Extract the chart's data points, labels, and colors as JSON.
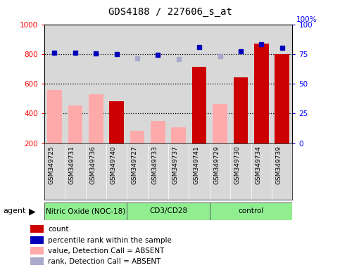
{
  "title": "GDS4188 / 227606_s_at",
  "samples": [
    "GSM349725",
    "GSM349731",
    "GSM349736",
    "GSM349740",
    "GSM349727",
    "GSM349733",
    "GSM349737",
    "GSM349741",
    "GSM349729",
    "GSM349730",
    "GSM349734",
    "GSM349739"
  ],
  "bar_values": [
    null,
    null,
    null,
    480,
    null,
    null,
    null,
    715,
    null,
    645,
    870,
    800
  ],
  "bar_color": "#cc0000",
  "pink_values": [
    558,
    455,
    530,
    null,
    285,
    350,
    305,
    null,
    462,
    null,
    null,
    null
  ],
  "pink_color": "#ffaaaa",
  "blue_squares": [
    810,
    808,
    806,
    797,
    null,
    796,
    null,
    845,
    null,
    820,
    863,
    843
  ],
  "blue_color": "#0000bb",
  "lavender_squares": [
    null,
    null,
    null,
    null,
    770,
    null,
    768,
    null,
    784,
    null,
    null,
    null
  ],
  "lavender_color": "#aaaacc",
  "ylim_left": [
    200,
    1000
  ],
  "ylim_right": [
    0,
    100
  ],
  "yticks_left": [
    200,
    400,
    600,
    800,
    1000
  ],
  "yticks_right": [
    0,
    25,
    50,
    75,
    100
  ],
  "hlines": [
    400,
    600,
    800
  ],
  "bar_width": 0.7,
  "group_defs": [
    {
      "name": "Nitric Oxide (NOC-18)",
      "start": 0,
      "end": 3
    },
    {
      "name": "CD3/CD28",
      "start": 4,
      "end": 7
    },
    {
      "name": "control",
      "start": 8,
      "end": 11
    }
  ],
  "group_color": "#90EE90",
  "legend_items": [
    {
      "label": "count",
      "color": "#cc0000"
    },
    {
      "label": "percentile rank within the sample",
      "color": "#0000bb"
    },
    {
      "label": "value, Detection Call = ABSENT",
      "color": "#ffaaaa"
    },
    {
      "label": "rank, Detection Call = ABSENT",
      "color": "#aaaacc"
    }
  ]
}
